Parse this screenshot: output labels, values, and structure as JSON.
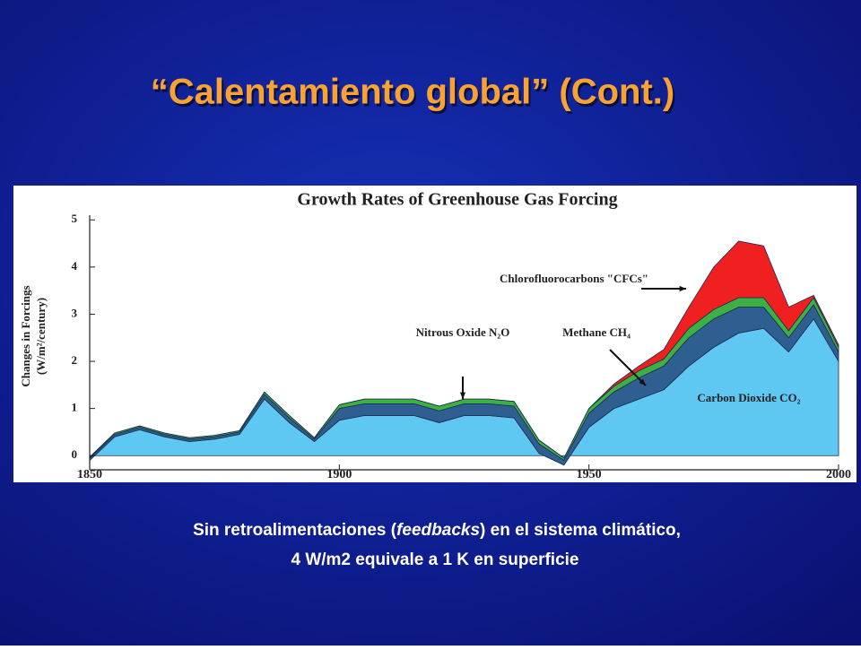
{
  "slide": {
    "title": "“Calentamiento global” (Cont.)"
  },
  "caption": {
    "line1_start": "Sin retroalimentaciones (",
    "line1_italic": "feedbacks",
    "line1_end": ") en el sistema climático,",
    "line2": "4 W/m2 equivale a 1 K en superficie"
  },
  "chart_data": {
    "type": "stacked-area",
    "title": "Growth Rates of Greenhouse Gas Forcing",
    "ylabel": [
      "Changes in Forcings",
      "(W/m²/century)"
    ],
    "x": [
      1850,
      1855,
      1860,
      1865,
      1870,
      1875,
      1880,
      1885,
      1890,
      1895,
      1900,
      1905,
      1910,
      1915,
      1920,
      1925,
      1930,
      1935,
      1940,
      1945,
      1950,
      1955,
      1960,
      1965,
      1970,
      1975,
      1980,
      1985,
      1990,
      1995,
      2000
    ],
    "series": [
      {
        "name": "Carbon Dioxide CO₂",
        "color": "#5ec8f2",
        "values": [
          -0.1,
          0.4,
          0.55,
          0.4,
          0.3,
          0.35,
          0.45,
          1.2,
          0.7,
          0.3,
          0.75,
          0.85,
          0.85,
          0.85,
          0.7,
          0.85,
          0.85,
          0.8,
          0.05,
          -0.2,
          0.6,
          1.0,
          1.2,
          1.4,
          1.9,
          2.3,
          2.6,
          2.7,
          2.2,
          2.9,
          2.0
        ]
      },
      {
        "name": "Methane CH₄",
        "color": "#2f5e90",
        "values": [
          0.05,
          0.05,
          0.05,
          0.05,
          0.05,
          0.05,
          0.05,
          0.1,
          0.1,
          0.05,
          0.25,
          0.25,
          0.25,
          0.25,
          0.25,
          0.25,
          0.25,
          0.25,
          0.2,
          0.1,
          0.3,
          0.35,
          0.45,
          0.5,
          0.6,
          0.6,
          0.55,
          0.45,
          0.3,
          0.3,
          0.2
        ]
      },
      {
        "name": "Nitrous Oxide N₂O",
        "color": "#3cb043",
        "values": [
          0.02,
          0.03,
          0.03,
          0.03,
          0.03,
          0.03,
          0.03,
          0.05,
          0.05,
          0.03,
          0.08,
          0.1,
          0.1,
          0.1,
          0.1,
          0.1,
          0.1,
          0.1,
          0.08,
          0.05,
          0.1,
          0.12,
          0.15,
          0.15,
          0.2,
          0.2,
          0.2,
          0.2,
          0.15,
          0.15,
          0.1
        ]
      },
      {
        "name": "Chlorofluorocarbons \"CFCs\"",
        "color": "#f02020",
        "values": [
          0,
          0,
          0,
          0,
          0,
          0,
          0,
          0,
          0,
          0,
          0,
          0,
          0,
          0,
          0,
          0,
          0,
          0,
          0,
          0,
          0,
          0.05,
          0.1,
          0.2,
          0.45,
          0.9,
          1.2,
          1.1,
          0.5,
          0.05,
          0.05
        ]
      }
    ],
    "xlim": [
      1850,
      2000
    ],
    "xticks": [
      1850,
      1900,
      1950,
      2000
    ],
    "ylim": [
      -0.3,
      5.1
    ],
    "yticks": [
      0,
      1,
      2,
      3,
      4,
      5
    ]
  }
}
